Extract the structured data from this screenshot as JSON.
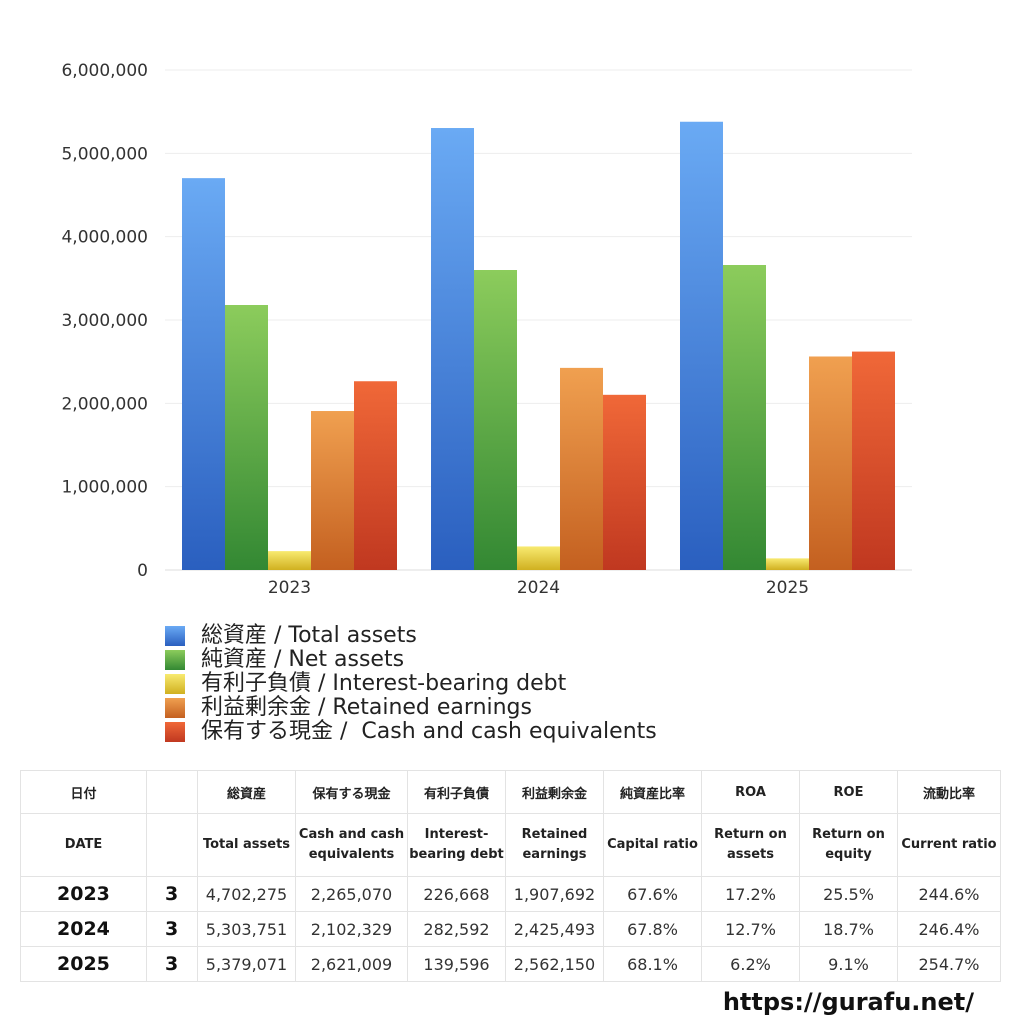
{
  "chart_data": {
    "type": "bar",
    "categories": [
      "2023",
      "2024",
      "2025"
    ],
    "ylim": [
      0,
      6000000
    ],
    "yticks": [
      "0",
      "1,000,000",
      "2,000,000",
      "3,000,000",
      "4,000,000",
      "5,000,000",
      "6,000,000"
    ],
    "grid": true,
    "legend_position": "bottom",
    "series": [
      {
        "name": "総資産 / Total assets",
        "values": [
          4702275,
          5303751,
          5379071
        ],
        "color_top": "#6aaaf4",
        "color_bottom": "#2a5fbf"
      },
      {
        "name": "純資産 / Net assets",
        "values": [
          3180000,
          3600000,
          3660000
        ],
        "color_top": "#8ccc5c",
        "color_bottom": "#338833"
      },
      {
        "name": "有利子負債 / Interest-bearing debt",
        "values": [
          226668,
          282592,
          139596
        ],
        "color_top": "#f8ea70",
        "color_bottom": "#d0b020"
      },
      {
        "name": "利益剰余金 / Retained earnings",
        "values": [
          1907692,
          2425493,
          2562150
        ],
        "color_top": "#f0a050",
        "color_bottom": "#c46020"
      },
      {
        "name": "保有する現金 /  Cash and cash equivalents",
        "values": [
          2265070,
          2102329,
          2621009
        ],
        "color_top": "#f06838",
        "color_bottom": "#c03820"
      }
    ]
  },
  "table": {
    "headers_ja": [
      "日付",
      "",
      "総資産",
      "保有する現金",
      "有利子負債",
      "利益剰余金",
      "純資産比率",
      "ROA",
      "ROE",
      "流動比率"
    ],
    "headers_en": [
      "DATE",
      "",
      "Total assets",
      "Cash and cash equivalents",
      "Interest-bearing debt",
      "Retained earnings",
      "Capital ratio",
      "Return on assets",
      "Return on equity",
      "Current ratio"
    ],
    "rows": [
      [
        "2023",
        "3",
        "4,702,275",
        "2,265,070",
        "226,668",
        "1,907,692",
        "67.6%",
        "17.2%",
        "25.5%",
        "244.6%"
      ],
      [
        "2024",
        "3",
        "5,303,751",
        "2,102,329",
        "282,592",
        "2,425,493",
        "67.8%",
        "12.7%",
        "18.7%",
        "246.4%"
      ],
      [
        "2025",
        "3",
        "5,379,071",
        "2,621,009",
        "139,596",
        "2,562,150",
        "68.1%",
        "6.2%",
        "9.1%",
        "254.7%"
      ]
    ]
  },
  "footer": {
    "url": "https://gurafu.net/"
  }
}
